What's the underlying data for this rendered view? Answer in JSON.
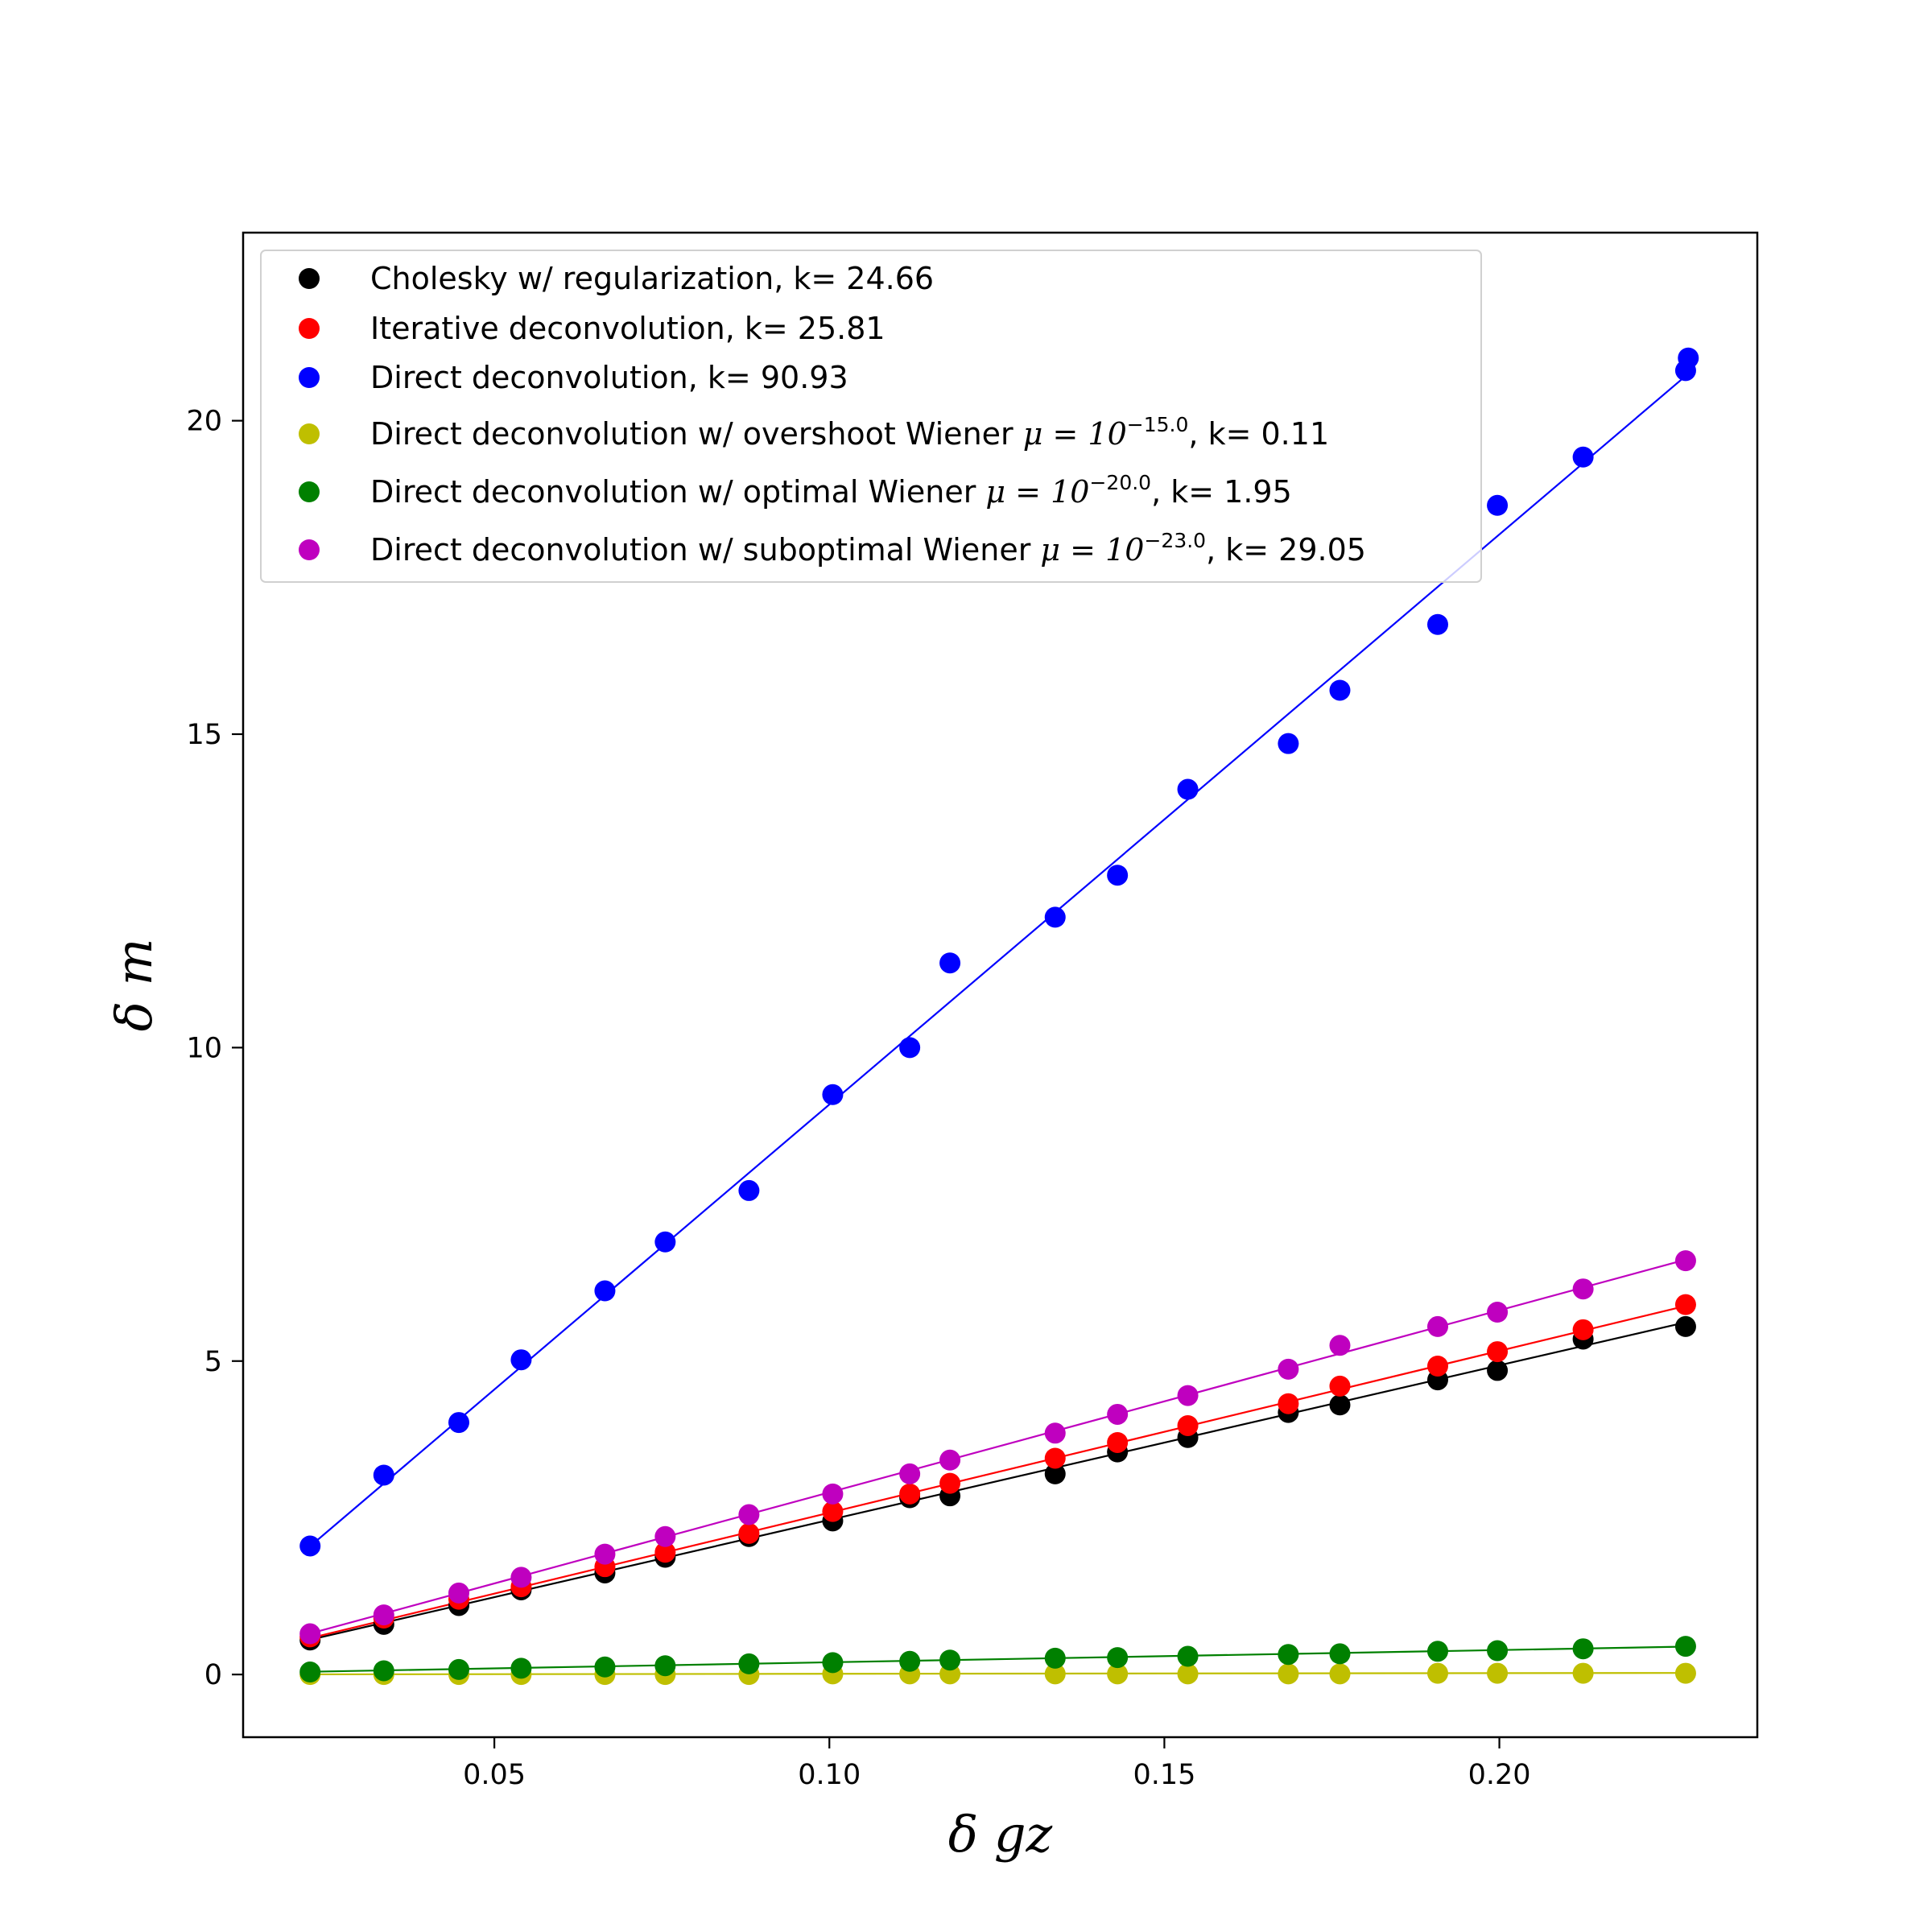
{
  "chart_data": {
    "type": "scatter",
    "title": "",
    "xlabel": "δ gz",
    "ylabel": "δ m",
    "xlim": [
      0.0125,
      0.2385
    ],
    "ylim": [
      -1.0,
      23.0
    ],
    "xticks": [
      0.05,
      0.1,
      0.15,
      0.2
    ],
    "xtick_labels": [
      "0.05",
      "0.10",
      "0.15",
      "0.20"
    ],
    "yticks": [
      0,
      5,
      10,
      15,
      20
    ],
    "ytick_labels": [
      "0",
      "5",
      "10",
      "15",
      "20"
    ],
    "grid": false,
    "legend_position": "top-left",
    "x": [
      0.0225,
      0.0335,
      0.0447,
      0.054,
      0.0665,
      0.0755,
      0.088,
      0.1005,
      0.112,
      0.118,
      0.1337,
      0.143,
      0.1535,
      0.1685,
      0.1762,
      0.1908,
      0.1997,
      0.2125,
      0.2278
    ],
    "series": [
      {
        "name": "Cholesky w/ regularization, k= 24.66",
        "color": "#000000",
        "values": [
          0.55,
          0.8,
          1.1,
          1.35,
          1.62,
          1.87,
          2.2,
          2.45,
          2.82,
          2.85,
          3.2,
          3.55,
          3.78,
          4.18,
          4.3,
          4.7,
          4.85,
          5.35,
          5.55
        ],
        "fit_slope": 24.66,
        "fit_intercept": 0.0
      },
      {
        "name": "Iterative deconvolution, k= 25.81",
        "color": "#ff0000",
        "values": [
          0.6,
          0.9,
          1.2,
          1.4,
          1.72,
          1.95,
          2.25,
          2.6,
          2.88,
          3.05,
          3.45,
          3.7,
          3.97,
          4.32,
          4.6,
          4.92,
          5.15,
          5.5,
          5.9
        ],
        "fit_slope": 25.81,
        "fit_intercept": 0.0
      },
      {
        "name": "Direct deconvolution, k= 90.93",
        "color": "#0000ff",
        "values": [
          2.05,
          3.18,
          4.02,
          5.02,
          6.12,
          6.9,
          7.72,
          9.25,
          10.0,
          11.35,
          12.08,
          12.75,
          14.12,
          14.85,
          15.7,
          16.75,
          18.65,
          19.42,
          20.8
        ],
        "extra_points": [
          {
            "x": 0.2282,
            "y": 21.0
          }
        ],
        "fit_slope": 90.93,
        "fit_intercept": 0.0
      },
      {
        "name": "Direct deconvolution w/ overshoot Wiener μ = 10^(−15.0), k= 0.11",
        "color": "#bfbf00",
        "values": [
          0.0,
          0.0,
          0.0,
          0.0,
          0.0,
          0.0,
          0.0,
          0.01,
          0.01,
          0.01,
          0.01,
          0.01,
          0.01,
          0.01,
          0.01,
          0.02,
          0.02,
          0.02,
          0.02
        ],
        "fit_slope": 0.11,
        "fit_intercept": 0.0
      },
      {
        "name": "Direct deconvolution w/ optimal Wiener μ = 10^(−20.0), k= 1.95",
        "color": "#008000",
        "values": [
          0.04,
          0.06,
          0.08,
          0.1,
          0.12,
          0.14,
          0.17,
          0.19,
          0.21,
          0.23,
          0.26,
          0.27,
          0.29,
          0.32,
          0.33,
          0.37,
          0.38,
          0.41,
          0.45
        ],
        "fit_slope": 1.95,
        "fit_intercept": 0.0
      },
      {
        "name": "Direct deconvolution w/ suboptimal Wiener μ = 10^(−23.0), k= 29.05",
        "color": "#bf00bf",
        "values": [
          0.65,
          0.95,
          1.3,
          1.55,
          1.92,
          2.2,
          2.55,
          2.88,
          3.2,
          3.42,
          3.85,
          4.15,
          4.45,
          4.87,
          5.25,
          5.55,
          5.78,
          6.15,
          6.6
        ],
        "fit_slope": 29.05,
        "fit_intercept": 0.0
      }
    ],
    "legend": [
      {
        "prefix": "Cholesky w/ regularization, k= 24.66",
        "mu": "",
        "exp": "",
        "suffix": ""
      },
      {
        "prefix": "Iterative deconvolution, k= 25.81",
        "mu": "",
        "exp": "",
        "suffix": ""
      },
      {
        "prefix": "Direct deconvolution, k= 90.93",
        "mu": "",
        "exp": "",
        "suffix": ""
      },
      {
        "prefix": "Direct deconvolution w/ overshoot Wiener ",
        "mu": "μ = 10",
        "exp": "−15.0",
        "suffix": ", k= 0.11"
      },
      {
        "prefix": "Direct deconvolution w/ optimal Wiener ",
        "mu": "μ = 10",
        "exp": "−20.0",
        "suffix": ", k= 1.95"
      },
      {
        "prefix": "Direct deconvolution w/ suboptimal Wiener ",
        "mu": "μ = 10",
        "exp": "−23.0",
        "suffix": ", k= 29.05"
      }
    ]
  }
}
